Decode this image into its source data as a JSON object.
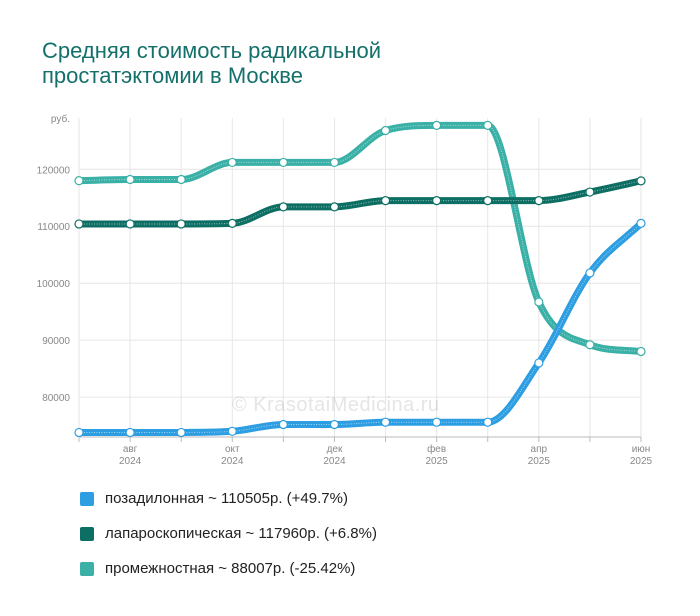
{
  "title_lines": [
    "Средняя стоимость радикальной",
    "простатэктомии в Москве"
  ],
  "watermark": "© KrasotaiMedicina.ru",
  "chart_data": {
    "type": "line",
    "title": "Средняя стоимость радикальной простатэктомии в Москве",
    "ylabel": "руб.",
    "ylim": [
      73000,
      129000
    ],
    "yticks": [
      80000,
      90000,
      100000,
      110000,
      120000
    ],
    "x": [
      "2024-07",
      "2024-08",
      "2024-09",
      "2024-10",
      "2024-11",
      "2024-12",
      "2025-01",
      "2025-02",
      "2025-03",
      "2025-04",
      "2025-05",
      "2025-06"
    ],
    "xtick_labels": [
      {
        "index": 1,
        "month": "авг",
        "year": "2024"
      },
      {
        "index": 3,
        "month": "окт",
        "year": "2024"
      },
      {
        "index": 5,
        "month": "дек",
        "year": "2024"
      },
      {
        "index": 7,
        "month": "фев",
        "year": "2025"
      },
      {
        "index": 9,
        "month": "апр",
        "year": "2025"
      },
      {
        "index": 11,
        "month": "июн",
        "year": "2025"
      }
    ],
    "grid": true,
    "legend_position": "bottom",
    "series": [
      {
        "name": "промежностная",
        "color": "#3ab0a6",
        "values": [
          118000,
          118200,
          118200,
          121200,
          121200,
          121200,
          126800,
          127700,
          127700,
          96700,
          89200,
          88007
        ],
        "label": "промежностная ~ 88007р. (-25.42%)"
      },
      {
        "name": "лапароскопическая",
        "color": "#0d6e64",
        "values": [
          110400,
          110400,
          110400,
          110500,
          113400,
          113400,
          114500,
          114500,
          114500,
          114500,
          116000,
          117960
        ],
        "label": "лапароскопическая ~ 117960р. (+6.8%)"
      },
      {
        "name": "позадилонная",
        "color": "#2e9ee2",
        "values": [
          73800,
          73800,
          73800,
          74000,
          75200,
          75200,
          75600,
          75600,
          75600,
          86000,
          101800,
          110505
        ],
        "label": "позадилонная ~ 110505р. (+49.7%)"
      }
    ],
    "legend": [
      {
        "color": "#2e9ee2",
        "label": "позадилонная ~ 110505р. (+49.7%)"
      },
      {
        "color": "#0d6e64",
        "label": "лапароскопическая ~ 117960р. (+6.8%)"
      },
      {
        "color": "#3ab0a6",
        "label": "промежностная ~ 88007р. (-25.42%)"
      }
    ]
  }
}
